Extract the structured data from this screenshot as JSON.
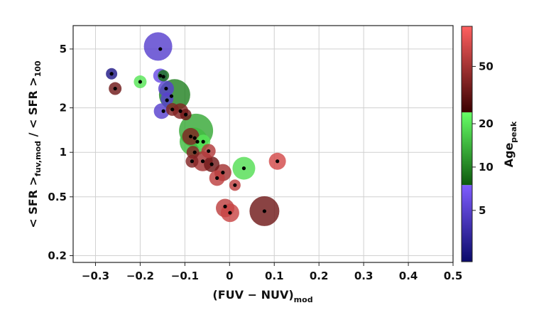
{
  "chart_data": {
    "type": "scatter",
    "title": "",
    "xlabel": {
      "main": "(FUV − NUV)",
      "sub": "mod"
    },
    "ylabel": {
      "part1": "< SFR >",
      "sub1": "fuv,mod",
      "part2": " / < SFR >",
      "sub2": "100"
    },
    "xlim": [
      -0.35,
      0.5
    ],
    "ylim": [
      0.18,
      7.2
    ],
    "yscale": "log",
    "grid": true,
    "xticks": [
      -0.3,
      -0.2,
      -0.1,
      0,
      0.1,
      0.2,
      0.3,
      0.4,
      0.5
    ],
    "xtick_labels": [
      "−0.3",
      "−0.2",
      "−0.1",
      "0",
      "0.1",
      "0.2",
      "0.3",
      "0.4",
      "0.5"
    ],
    "yticks": [
      0.2,
      0.5,
      1,
      2,
      5
    ],
    "ytick_labels": [
      "0.2",
      "0.5",
      "1",
      "2",
      "5"
    ],
    "colorbar": {
      "label": {
        "main": "Age",
        "sub": "peak"
      },
      "scale": "log",
      "range": [
        2.2,
        95
      ],
      "ticks": [
        5,
        10,
        20,
        50
      ],
      "tick_labels": [
        "5",
        "10",
        "20",
        "50"
      ],
      "segments": [
        {
          "from": 2.2,
          "to": 7.5,
          "bottom": "#0a0a6a",
          "top": "#7f5cff"
        },
        {
          "from": 7.5,
          "to": 24,
          "bottom": "#0d5a0d",
          "top": "#66ff66"
        },
        {
          "from": 24,
          "to": 95,
          "bottom": "#3a0000",
          "top": "#ff6060"
        }
      ]
    },
    "points": [
      {
        "x": -0.16,
        "y": 5.2,
        "age": 5,
        "size": 20,
        "cx": -0.155,
        "cy": 5.0
      },
      {
        "x": -0.264,
        "y": 3.4,
        "age": 2.8,
        "size": 8,
        "cx": -0.264,
        "cy": 3.4
      },
      {
        "x": -0.256,
        "y": 2.7,
        "age": 35,
        "size": 9,
        "cx": -0.256,
        "cy": 2.7
      },
      {
        "x": -0.2,
        "y": 3.0,
        "age": 20,
        "size": 9,
        "cx": -0.2,
        "cy": 3.0
      },
      {
        "x": -0.155,
        "y": 3.3,
        "age": 6,
        "size": 10,
        "cx": -0.155,
        "cy": 3.3
      },
      {
        "x": -0.148,
        "y": 3.3,
        "age": 9,
        "size": 8,
        "cx": -0.148,
        "cy": 3.25
      },
      {
        "x": -0.142,
        "y": 2.7,
        "age": 5,
        "size": 11,
        "cx": -0.142,
        "cy": 2.7
      },
      {
        "x": -0.123,
        "y": 2.45,
        "age": 10,
        "size": 22,
        "cx": -0.13,
        "cy": 2.4
      },
      {
        "x": -0.152,
        "y": 1.9,
        "age": 5,
        "size": 11,
        "cx": -0.148,
        "cy": 1.9
      },
      {
        "x": -0.14,
        "y": 2.3,
        "age": 5,
        "size": 9,
        "cx": -0.14,
        "cy": 2.25
      },
      {
        "x": -0.128,
        "y": 1.95,
        "age": 40,
        "size": 9,
        "cx": -0.128,
        "cy": 1.95
      },
      {
        "x": -0.11,
        "y": 1.9,
        "age": 40,
        "size": 11,
        "cx": -0.11,
        "cy": 1.9
      },
      {
        "x": -0.098,
        "y": 1.8,
        "age": 35,
        "size": 8,
        "cx": -0.098,
        "cy": 1.8
      },
      {
        "x": -0.075,
        "y": 1.4,
        "age": 13,
        "size": 24,
        "cx": -0.078,
        "cy": 1.25
      },
      {
        "x": -0.08,
        "y": 1.18,
        "age": 15,
        "size": 20,
        "cx": -0.072,
        "cy": 1.18
      },
      {
        "x": -0.087,
        "y": 1.28,
        "age": 40,
        "size": 12,
        "cx": -0.087,
        "cy": 1.28
      },
      {
        "x": -0.059,
        "y": 1.18,
        "age": 20,
        "size": 10,
        "cx": -0.059,
        "cy": 1.18
      },
      {
        "x": -0.082,
        "y": 1.0,
        "age": 40,
        "size": 9,
        "cx": -0.078,
        "cy": 1.0
      },
      {
        "x": -0.047,
        "y": 1.02,
        "age": 55,
        "size": 10,
        "cx": -0.047,
        "cy": 1.02
      },
      {
        "x": -0.06,
        "y": 0.87,
        "age": 50,
        "size": 14,
        "cx": -0.06,
        "cy": 0.87
      },
      {
        "x": -0.084,
        "y": 0.87,
        "age": 40,
        "size": 9,
        "cx": -0.084,
        "cy": 0.87
      },
      {
        "x": -0.04,
        "y": 0.83,
        "age": 35,
        "size": 11,
        "cx": -0.04,
        "cy": 0.83
      },
      {
        "x": -0.015,
        "y": 0.73,
        "age": 50,
        "size": 12,
        "cx": -0.015,
        "cy": 0.73
      },
      {
        "x": -0.028,
        "y": 0.67,
        "age": 60,
        "size": 11,
        "cx": -0.028,
        "cy": 0.67
      },
      {
        "x": 0.032,
        "y": 0.78,
        "age": 19,
        "size": 16,
        "cx": 0.032,
        "cy": 0.78
      },
      {
        "x": 0.012,
        "y": 0.6,
        "age": 60,
        "size": 8,
        "cx": 0.012,
        "cy": 0.6
      },
      {
        "x": 0.107,
        "y": 0.87,
        "age": 70,
        "size": 12,
        "cx": 0.107,
        "cy": 0.87
      },
      {
        "x": -0.01,
        "y": 0.42,
        "age": 60,
        "size": 13,
        "cx": -0.01,
        "cy": 0.43
      },
      {
        "x": 0.001,
        "y": 0.39,
        "age": 65,
        "size": 13,
        "cx": 0.001,
        "cy": 0.39
      },
      {
        "x": 0.078,
        "y": 0.4,
        "age": 35,
        "size": 21,
        "cx": 0.078,
        "cy": 0.4
      }
    ]
  }
}
